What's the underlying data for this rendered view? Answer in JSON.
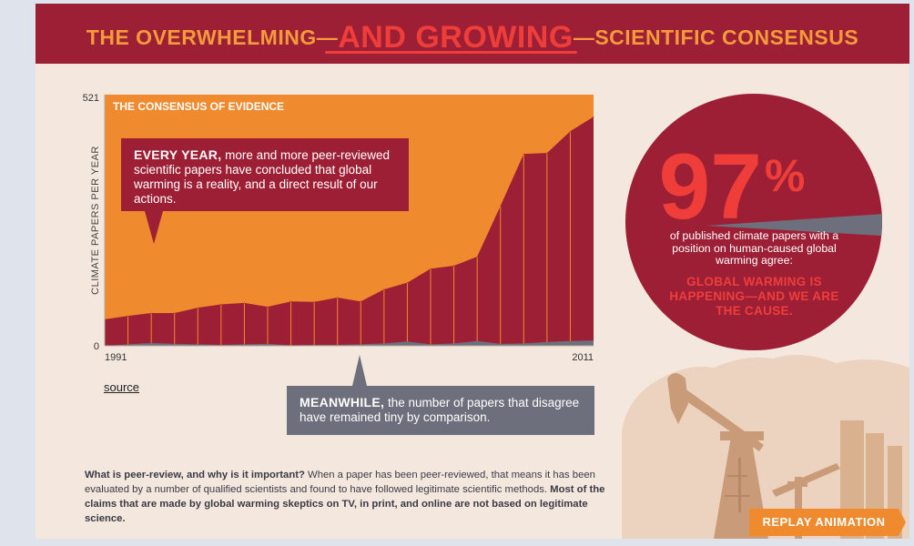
{
  "banner": {
    "title_left": "THE OVERWHELMING—",
    "title_mid": "AND GROWING",
    "title_right": "—SCIENTIFIC CONSENSUS"
  },
  "chart_data": {
    "type": "area",
    "title": "THE CONSENSUS OF EVIDENCE",
    "ylabel": "CLIMATE PAPERS PER YEAR",
    "xlabel": "",
    "ylim": [
      0,
      521
    ],
    "yticks": [
      "0",
      "521"
    ],
    "xticks": [
      "1991",
      "2011"
    ],
    "series": [
      {
        "name": "",
        "role": "endorse",
        "values": [
          55,
          62,
          68,
          68,
          79,
          86,
          89,
          81,
          92,
          91,
          100,
          92,
          117,
          131,
          160,
          166,
          185,
          290,
          398,
          400,
          445,
          475
        ]
      },
      {
        "name": "",
        "role": "reject",
        "values": [
          0,
          3,
          6,
          4,
          3,
          2,
          3,
          4,
          1,
          2,
          2,
          3,
          5,
          9,
          3,
          5,
          10,
          4,
          5,
          8,
          10,
          11
        ]
      }
    ],
    "colors": {
      "background": "#f08a2e",
      "endorse": "#9d1f36",
      "reject": "#6d6f7c",
      "divider": "#f08a2e"
    }
  },
  "callouts": {
    "every_year_bold": "EVERY YEAR,",
    "every_year_text": " more and more peer-reviewed scientific papers have concluded that global warming is a reality, and a direct result of our actions.",
    "meanwhile_bold": "MEANWHILE,",
    "meanwhile_text": " the number of papers that disagree have remained tiny by comparison."
  },
  "source_label": "source",
  "peer_review": {
    "q": "What is peer-review, and why is it important?",
    "body": " When a paper has been peer-reviewed, that means it has been evaluated by a number of qualified scientists and found to have followed legitimate scientific methods. ",
    "emphasis": "Most of the claims that are made by global warming skeptics on TV, in print, and online are not based on legitimate science."
  },
  "circle": {
    "percent": "97",
    "percent_sign": "%",
    "text": "of published climate papers with a position on human-caused global warming agree:",
    "cause": "GLOBAL WARMING IS HAPPENING—AND WE ARE THE CAUSE.",
    "fraction": 0.97
  },
  "replay_label": "REPLAY ANIMATION",
  "colors": {
    "brand_red": "#9d1f36",
    "accent_orange": "#f08a2e",
    "title_orange": "#f59a3a",
    "bright_red": "#ef3e3a",
    "slate": "#6d6f7c",
    "cream": "#f4e8de"
  }
}
